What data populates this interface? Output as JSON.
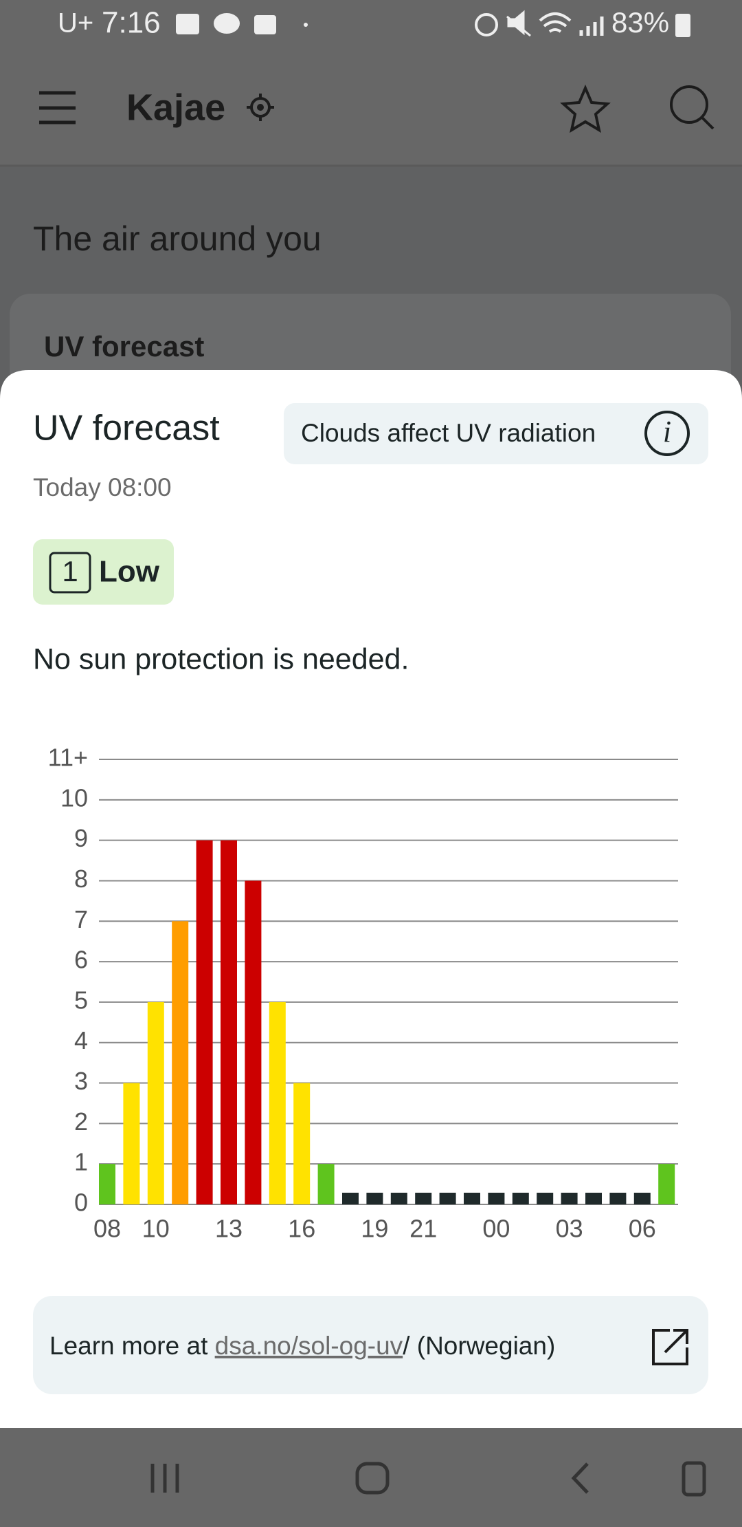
{
  "status_bar": {
    "carrier": "U+",
    "time": "7:16",
    "battery": "83%"
  },
  "app_bar": {
    "title": "Kajae"
  },
  "background": {
    "heading": "The air around you",
    "card_title": "UV forecast"
  },
  "sheet": {
    "title": "UV forecast",
    "notice": "Clouds affect UV radiation",
    "time": "Today 08:00",
    "level": {
      "index": "1",
      "label": "Low"
    },
    "advice": "No sun protection is needed.",
    "link": {
      "prefix": "Learn more at ",
      "url_text": "dsa.no/sol-og-uv",
      "suffix": "/ (Norwegian)"
    }
  },
  "chart_data": {
    "type": "bar",
    "categories": [
      "08",
      null,
      "10",
      null,
      null,
      "13",
      null,
      null,
      "16",
      null,
      null,
      "19",
      null,
      "21",
      null,
      null,
      "00",
      null,
      null,
      "03",
      null,
      null,
      "06",
      null
    ],
    "values": [
      1,
      3,
      5,
      7,
      9,
      9,
      8,
      5,
      3,
      1,
      0,
      0,
      0,
      0,
      0,
      0,
      0,
      0,
      0,
      0,
      0,
      0,
      0,
      1
    ],
    "colors": [
      "#5fc41e",
      "#ffe200",
      "#ffe200",
      "#ff9d00",
      "#cc0000",
      "#cc0000",
      "#cc0000",
      "#ffe200",
      "#ffe200",
      "#5fc41e",
      "#1f2a2b",
      "#1f2a2b",
      "#1f2a2b",
      "#1f2a2b",
      "#1f2a2b",
      "#1f2a2b",
      "#1f2a2b",
      "#1f2a2b",
      "#1f2a2b",
      "#1f2a2b",
      "#1f2a2b",
      "#1f2a2b",
      "#1f2a2b",
      "#5fc41e"
    ],
    "ylim": [
      0,
      11
    ],
    "yticks": [
      0,
      1,
      2,
      3,
      4,
      5,
      6,
      7,
      8,
      9,
      10,
      {
        "value": 11,
        "label": "11+"
      }
    ],
    "grid": true
  }
}
